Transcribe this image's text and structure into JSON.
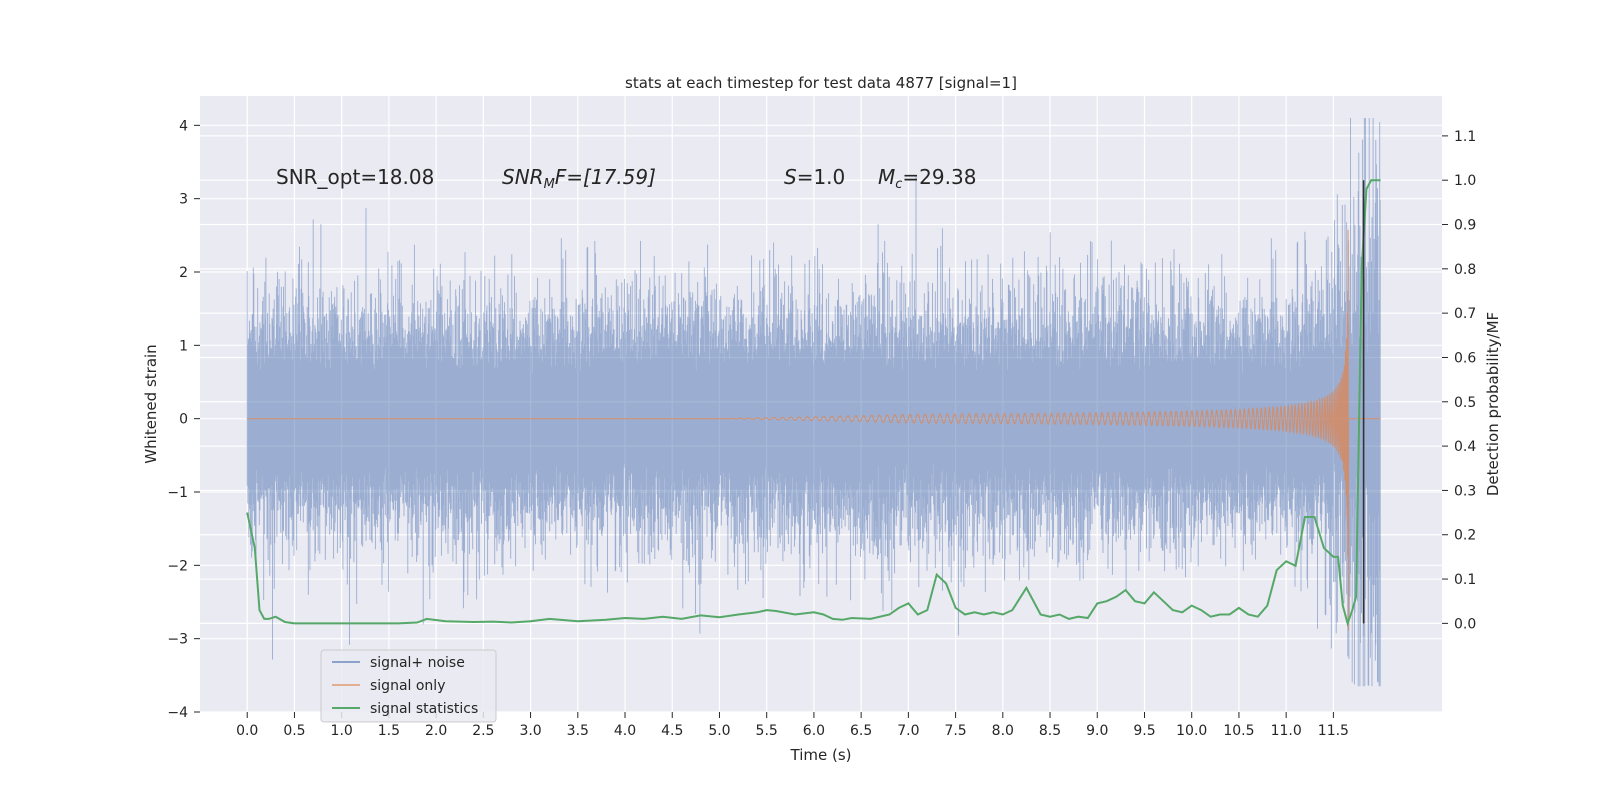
{
  "chart_data": {
    "type": "line",
    "title": "stats at each timestep for test data 4877 [signal=1]",
    "xlabel": "Time (s)",
    "ylabel_left": "Whitened strain",
    "ylabel_right": "Detection probability/MF",
    "xlim": [
      -0.5,
      12.65
    ],
    "ylim_left": [
      -4,
      4.4
    ],
    "ylim_right": [
      -0.2,
      1.19
    ],
    "x_ticks": [
      0.0,
      0.5,
      1.0,
      1.5,
      2.0,
      2.5,
      3.0,
      3.5,
      4.0,
      4.5,
      5.0,
      5.5,
      6.0,
      6.5,
      7.0,
      7.5,
      8.0,
      8.5,
      9.0,
      9.5,
      10.0,
      10.5,
      11.0,
      11.5
    ],
    "x_tick_labels": [
      "0.0",
      "0.5",
      "1.0",
      "1.5",
      "2.0",
      "2.5",
      "3.0",
      "3.5",
      "4.0",
      "4.5",
      "5.0",
      "5.5",
      "6.0",
      "6.5",
      "7.0",
      "7.5",
      "8.0",
      "8.5",
      "9.0",
      "9.5",
      "10.0",
      "10.5",
      "11.0",
      "11.5"
    ],
    "y_left_ticks": [
      -4,
      -3,
      -2,
      -1,
      0,
      1,
      2,
      3,
      4
    ],
    "y_left_tick_labels": [
      "−4",
      "−3",
      "−2",
      "−1",
      "0",
      "1",
      "2",
      "3",
      "4"
    ],
    "y_right_ticks": [
      0.0,
      0.1,
      0.2,
      0.3,
      0.4,
      0.5,
      0.6,
      0.7,
      0.8,
      0.9,
      1.0,
      1.1
    ],
    "y_right_tick_labels": [
      "0.0",
      "0.1",
      "0.2",
      "0.3",
      "0.4",
      "0.5",
      "0.6",
      "0.7",
      "0.8",
      "0.9",
      "1.0",
      "1.1"
    ],
    "annotations": {
      "snr_opt": "SNR_opt=18.08",
      "snr_mf_main": "SNR",
      "snr_mf_sub": "M",
      "snr_mf_rest": "F=[17.59]",
      "s_main": "S",
      "s_rest": "=1.0",
      "mc_main": "M",
      "mc_sub": "c",
      "mc_rest": "=29.38"
    },
    "legend": {
      "placement": "lower-left",
      "entries": [
        "signal+ noise",
        "signal only",
        "signal statistics"
      ]
    },
    "colors": {
      "noise": "#4c72b0",
      "signal": "#dd8452",
      "stats": "#55a868",
      "marker": "#333333",
      "background": "#eaeaf2",
      "grid": "#ffffff"
    },
    "marker_time": 11.82,
    "signal_statistics": {
      "x": [
        0.0,
        0.08,
        0.13,
        0.18,
        0.23,
        0.3,
        0.4,
        0.5,
        0.7,
        1.0,
        1.3,
        1.6,
        1.8,
        1.9,
        2.1,
        2.4,
        2.6,
        2.8,
        3.0,
        3.2,
        3.5,
        3.8,
        4.0,
        4.2,
        4.4,
        4.6,
        4.8,
        5.0,
        5.2,
        5.4,
        5.5,
        5.6,
        5.8,
        6.0,
        6.1,
        6.2,
        6.3,
        6.4,
        6.6,
        6.8,
        6.9,
        7.0,
        7.1,
        7.2,
        7.3,
        7.4,
        7.5,
        7.6,
        7.7,
        7.8,
        7.9,
        8.0,
        8.1,
        8.25,
        8.4,
        8.5,
        8.6,
        8.7,
        8.8,
        8.9,
        9.0,
        9.1,
        9.2,
        9.3,
        9.4,
        9.5,
        9.6,
        9.7,
        9.8,
        9.9,
        10.0,
        10.1,
        10.2,
        10.3,
        10.4,
        10.5,
        10.6,
        10.7,
        10.8,
        10.9,
        11.0,
        11.1,
        11.2,
        11.3,
        11.4,
        11.5,
        11.55,
        11.6,
        11.65,
        11.7,
        11.74,
        11.8,
        11.85,
        11.9,
        11.95,
        12.0
      ],
      "y": [
        0.25,
        0.17,
        0.03,
        0.01,
        0.01,
        0.015,
        0.003,
        0.0,
        0.0,
        0.0,
        0.0,
        0.0,
        0.002,
        0.01,
        0.005,
        0.003,
        0.004,
        0.002,
        0.005,
        0.01,
        0.005,
        0.008,
        0.012,
        0.01,
        0.015,
        0.01,
        0.018,
        0.014,
        0.02,
        0.025,
        0.03,
        0.028,
        0.02,
        0.025,
        0.02,
        0.01,
        0.008,
        0.012,
        0.01,
        0.02,
        0.035,
        0.045,
        0.02,
        0.03,
        0.11,
        0.09,
        0.035,
        0.02,
        0.025,
        0.02,
        0.025,
        0.02,
        0.03,
        0.08,
        0.02,
        0.015,
        0.02,
        0.01,
        0.015,
        0.012,
        0.045,
        0.05,
        0.06,
        0.075,
        0.05,
        0.045,
        0.07,
        0.05,
        0.03,
        0.025,
        0.04,
        0.03,
        0.015,
        0.02,
        0.02,
        0.035,
        0.02,
        0.015,
        0.04,
        0.12,
        0.14,
        0.13,
        0.24,
        0.24,
        0.17,
        0.15,
        0.15,
        0.04,
        0.0,
        0.03,
        0.06,
        0.8,
        0.98,
        1.0,
        1.0,
        1.0
      ]
    }
  }
}
